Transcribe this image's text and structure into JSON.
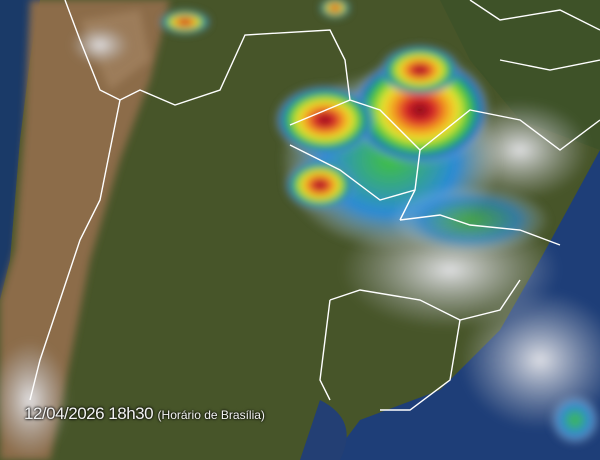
{
  "timestamp": {
    "datetime": "12/04/2026 18h30",
    "timezone": "(Horário de Brasília)"
  },
  "colors": {
    "ocean": "#1b3a6b",
    "andes": "#8a6a48",
    "land": "#4a5a2e",
    "borders": "#ffffff",
    "storm_core": "#8b0a14"
  }
}
